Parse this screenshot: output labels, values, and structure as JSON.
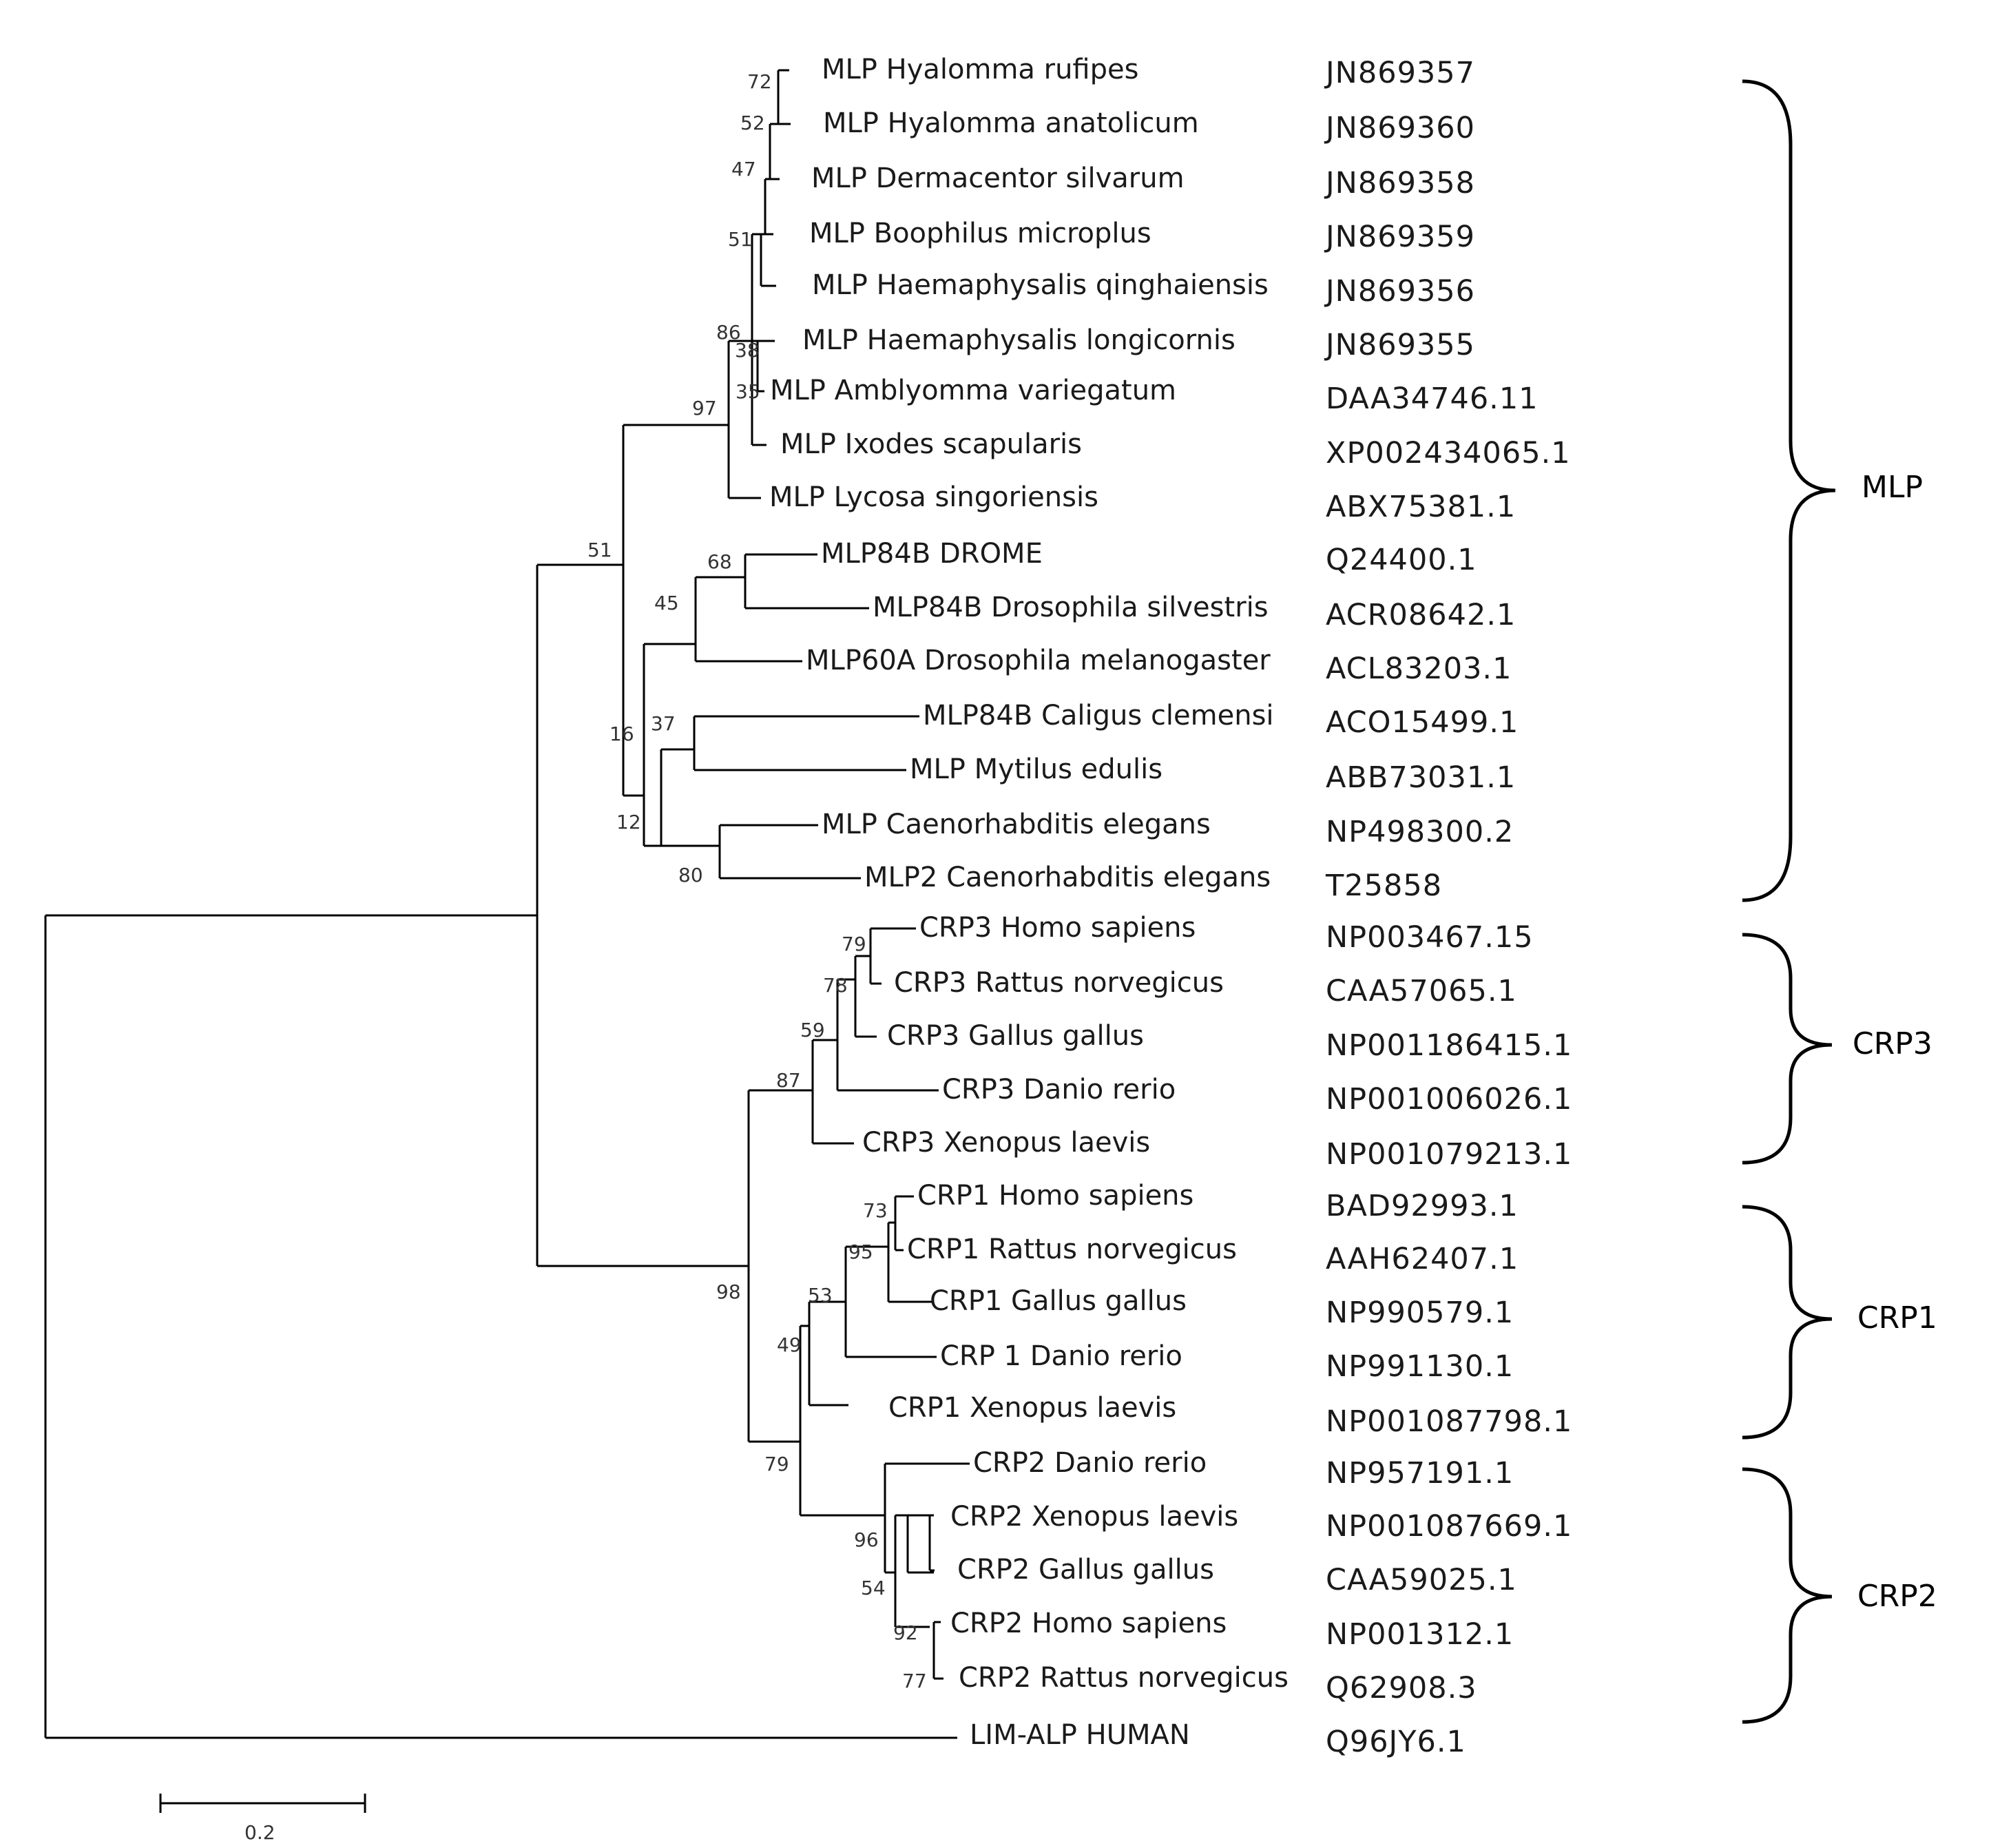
{
  "taxa": [
    {
      "name": "MLP Hyalomma rufipes",
      "accession": "JN869357",
      "marker": true
    },
    {
      "name": "MLP Hyalomma anatolicum",
      "accession": "JN869360",
      "marker": true
    },
    {
      "name": "MLP Dermacentor silvarum",
      "accession": "JN869358",
      "marker": true
    },
    {
      "name": "MLP Boophilus microplus",
      "accession": "JN869359",
      "marker": true
    },
    {
      "name": "MLP Haemaphysalis qinghaiensis",
      "accession": "JN869356",
      "marker": true
    },
    {
      "name": "MLP Haemaphysalis longicornis",
      "accession": "JN869355",
      "marker": true
    },
    {
      "name": "MLP Amblyomma variegatum",
      "accession": "DAA34746.11",
      "marker": false
    },
    {
      "name": "MLP Ixodes scapularis",
      "accession": "XP002434065.1",
      "marker": false
    },
    {
      "name": "MLP Lycosa singoriensis",
      "accession": "ABX75381.1",
      "marker": false
    },
    {
      "name": "MLP84B DROME",
      "accession": "Q24400.1",
      "marker": false
    },
    {
      "name": "MLP84B Drosophila silvestris",
      "accession": "ACR08642.1",
      "marker": false
    },
    {
      "name": "MLP60A Drosophila melanogaster",
      "accession": "ACL83203.1",
      "marker": false
    },
    {
      "name": "MLP84B Caligus clemensi",
      "accession": "ACO15499.1",
      "marker": false
    },
    {
      "name": "MLP Mytilus edulis",
      "accession": "ABB73031.1",
      "marker": false
    },
    {
      "name": "MLP Caenorhabditis elegans",
      "accession": "NP498300.2",
      "marker": false
    },
    {
      "name": "MLP2 Caenorhabditis elegans",
      "accession": "T25858",
      "marker": false
    },
    {
      "name": "CRP3 Homo sapiens",
      "accession": "NP003467.15",
      "marker": false
    },
    {
      "name": "CRP3 Rattus norvegicus",
      "accession": "CAA57065.1",
      "marker": false
    },
    {
      "name": "CRP3 Gallus gallus",
      "accession": "NP001186415.1",
      "marker": false
    },
    {
      "name": "CRP3 Danio rerio",
      "accession": "NP001006026.1",
      "marker": false
    },
    {
      "name": "CRP3 Xenopus laevis",
      "accession": "NP001079213.1",
      "marker": false
    },
    {
      "name": "CRP1 Homo sapiens",
      "accession": "BAD92993.1",
      "marker": false
    },
    {
      "name": "CRP1 Rattus norvegicus",
      "accession": "AAH62407.1",
      "marker": false
    },
    {
      "name": "CRP1 Gallus gallus",
      "accession": "NP990579.1",
      "marker": false
    },
    {
      "name": "CRP 1 Danio rerio",
      "accession": "NP991130.1",
      "marker": false
    },
    {
      "name": "CRP1 Xenopus laevis",
      "accession": "NP001087798.1",
      "marker": false
    },
    {
      "name": "CRP2 Danio rerio",
      "accession": "NP957191.1",
      "marker": false
    },
    {
      "name": "CRP2 Xenopus laevis",
      "accession": "NP001087669.1",
      "marker": false
    },
    {
      "name": "CRP2 Gallus gallus",
      "accession": "CAA59025.1",
      "marker": false
    },
    {
      "name": "CRP2 Homo sapiens",
      "accession": "NP001312.1",
      "marker": false
    },
    {
      "name": "CRP2 Rattus norvegicus",
      "accession": "Q62908.3",
      "marker": false
    },
    {
      "name": "LIM-ALP HUMAN",
      "accession": "Q96JY6.1",
      "marker": false
    }
  ],
  "bootstrap_values": [
    "72",
    "52",
    "47",
    "51",
    "86",
    "38",
    "35",
    "97",
    "51",
    "68",
    "45",
    "37",
    "16",
    "12",
    "80",
    "79",
    "78",
    "59",
    "87",
    "73",
    "95",
    "53",
    "49",
    "98",
    "79",
    "96",
    "54",
    "92",
    "77"
  ],
  "clades": [
    {
      "label": "MLP"
    },
    {
      "label": "CRP3"
    },
    {
      "label": "CRP1"
    },
    {
      "label": "CRP2"
    }
  ],
  "scale_bar": {
    "label": "0.2",
    "length": 0.2
  },
  "colors": {
    "lines": "#000000",
    "text": "#1a1a1a",
    "background": "#ffffff"
  }
}
